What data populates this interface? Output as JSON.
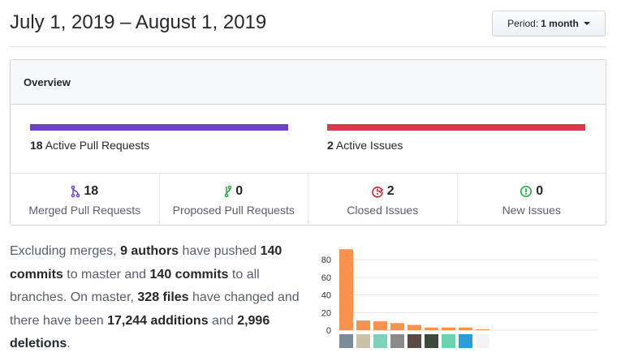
{
  "header": {
    "title": "July 1, 2019 – August 1, 2019",
    "period_label": "Period:",
    "period_value": "1 month"
  },
  "overview": {
    "title": "Overview",
    "active_prs": {
      "count": "18",
      "label": "Active Pull Requests",
      "color": "#6f42c1"
    },
    "active_issues": {
      "count": "2",
      "label": "Active Issues",
      "color": "#d73a49"
    },
    "stats": [
      {
        "icon": "git-merge-icon",
        "count": "18",
        "label": "Merged Pull Requests",
        "color": "#6f42c1"
      },
      {
        "icon": "git-pull-request-icon",
        "count": "0",
        "label": "Proposed Pull Requests",
        "color": "#28a745"
      },
      {
        "icon": "issue-closed-icon",
        "count": "2",
        "label": "Closed Issues",
        "color": "#cb2431"
      },
      {
        "icon": "issue-opened-icon",
        "count": "0",
        "label": "New Issues",
        "color": "#28a745"
      }
    ]
  },
  "summary": {
    "t1": "Excluding merges, ",
    "authors": "9 authors",
    "t2": " have pushed ",
    "commits_master": "140 commits",
    "t3": " to master and ",
    "commits_all": "140 commits",
    "t4": " to all branches. On master, ",
    "files": "328 files",
    "t5": " have changed and there have been ",
    "additions_num": "17,244",
    "additions_word": " additions",
    "t6": " and ",
    "deletions_num": "2,996",
    "deletions_word": "deletions",
    "t7": "."
  },
  "chart_data": {
    "type": "bar",
    "values": [
      92,
      11,
      10,
      8,
      6,
      3,
      3,
      3,
      1
    ],
    "yticks": [
      "0",
      "20",
      "40",
      "60",
      "80"
    ],
    "ylim": [
      0,
      92
    ],
    "grid": true,
    "bar_color": "#f9924c"
  }
}
